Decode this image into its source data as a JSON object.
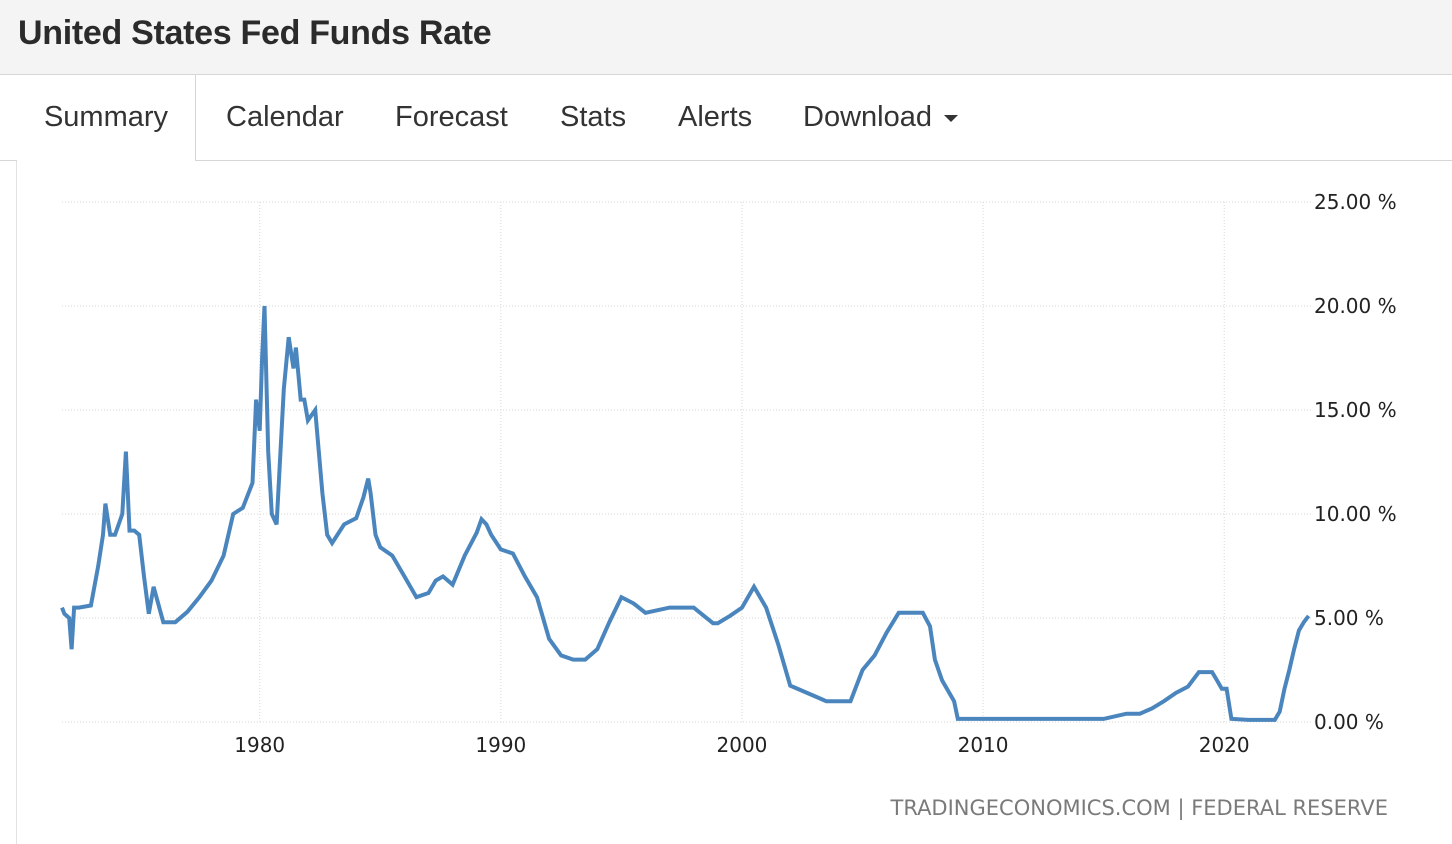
{
  "header": {
    "title": "United States Fed Funds Rate"
  },
  "tabs": [
    {
      "label": "Summary",
      "active": true
    },
    {
      "label": "Calendar"
    },
    {
      "label": "Forecast"
    },
    {
      "label": "Stats"
    },
    {
      "label": "Alerts"
    },
    {
      "label": "Download"
    }
  ],
  "colors": {
    "line": "#4a86bd",
    "grid": "#d9d9d9"
  },
  "chart_data": {
    "type": "line",
    "title": "United States Fed Funds Rate",
    "xlabel": "",
    "ylabel": "",
    "xlim": [
      1971.8,
      2023.6
    ],
    "ylim": [
      0,
      25
    ],
    "y_ticks": [
      0,
      5,
      10,
      15,
      20,
      25
    ],
    "y_tick_labels": [
      "0.00 %",
      "5.00 %",
      "10.00 %",
      "15.00 %",
      "20.00 %",
      "25.00 %"
    ],
    "x_ticks": [
      1980,
      1990,
      2000,
      2010,
      2020
    ],
    "x_tick_labels": [
      "1980",
      "1990",
      "2000",
      "2010",
      "2020"
    ],
    "grid": true,
    "source": "TRADINGECONOMICS.COM | FEDERAL RESERVE",
    "series": [
      {
        "name": "Fed Funds Rate",
        "x": [
          1971.8,
          1971.9,
          1972.1,
          1972.2,
          1972.3,
          1972.5,
          1973.0,
          1973.3,
          1973.5,
          1973.6,
          1973.8,
          1974.0,
          1974.3,
          1974.45,
          1974.6,
          1974.8,
          1975.0,
          1975.2,
          1975.4,
          1975.6,
          1976.0,
          1976.5,
          1977.0,
          1977.5,
          1978.0,
          1978.5,
          1978.9,
          1979.3,
          1979.7,
          1979.85,
          1980.0,
          1980.1,
          1980.2,
          1980.35,
          1980.5,
          1980.7,
          1981.0,
          1981.2,
          1981.4,
          1981.5,
          1981.7,
          1981.85,
          1982.0,
          1982.3,
          1982.6,
          1982.8,
          1983.0,
          1983.5,
          1984.0,
          1984.3,
          1984.5,
          1984.6,
          1984.8,
          1985.0,
          1985.5,
          1986.0,
          1986.5,
          1987.0,
          1987.3,
          1987.6,
          1988.0,
          1988.5,
          1989.0,
          1989.2,
          1989.4,
          1989.6,
          1990.0,
          1990.5,
          1991.0,
          1991.5,
          1992.0,
          1992.5,
          1993.0,
          1993.5,
          1994.0,
          1994.5,
          1995.0,
          1995.5,
          1996.0,
          1997.0,
          1998.0,
          1998.8,
          1999.0,
          1999.5,
          2000.0,
          2000.5,
          2001.0,
          2001.5,
          2002.0,
          2003.0,
          2003.5,
          2004.5,
          2005.0,
          2005.5,
          2006.0,
          2006.5,
          2007.0,
          2007.5,
          2007.8,
          2008.0,
          2008.3,
          2008.8,
          2008.95,
          2009.5,
          2012.0,
          2015.0,
          2015.95,
          2016.5,
          2017.0,
          2017.5,
          2018.0,
          2018.5,
          2018.95,
          2019.5,
          2019.7,
          2019.9,
          2020.1,
          2020.3,
          2021.0,
          2022.1,
          2022.3,
          2022.5,
          2022.7,
          2022.9,
          2023.1,
          2023.3,
          2023.5
        ],
        "y": [
          5.5,
          5.2,
          5.0,
          3.5,
          5.5,
          5.5,
          5.6,
          7.5,
          9.0,
          10.5,
          9.0,
          9.0,
          10.0,
          13.0,
          9.2,
          9.2,
          9.0,
          7.0,
          5.2,
          6.5,
          4.8,
          4.8,
          5.3,
          6.0,
          6.8,
          8.0,
          10.0,
          10.3,
          11.5,
          15.5,
          14.0,
          17.5,
          20.0,
          13.0,
          10.0,
          9.5,
          16.0,
          18.5,
          17.0,
          18.0,
          15.5,
          15.5,
          14.5,
          15.0,
          11.0,
          9.0,
          8.6,
          9.5,
          9.8,
          10.8,
          11.7,
          11.0,
          9.0,
          8.4,
          8.0,
          7.0,
          6.0,
          6.2,
          6.8,
          7.0,
          6.6,
          8.0,
          9.1,
          9.75,
          9.5,
          9.0,
          8.3,
          8.1,
          7.0,
          6.0,
          4.0,
          3.2,
          3.0,
          3.0,
          3.5,
          4.8,
          6.0,
          5.7,
          5.25,
          5.5,
          5.5,
          4.75,
          4.75,
          5.1,
          5.5,
          6.5,
          5.5,
          3.75,
          1.75,
          1.25,
          1.0,
          1.0,
          2.5,
          3.2,
          4.3,
          5.25,
          5.25,
          5.25,
          4.6,
          3.0,
          2.0,
          1.0,
          0.15,
          0.15,
          0.15,
          0.15,
          0.4,
          0.4,
          0.65,
          1.0,
          1.4,
          1.7,
          2.4,
          2.4,
          2.0,
          1.6,
          1.6,
          0.15,
          0.1,
          0.1,
          0.5,
          1.6,
          2.5,
          3.5,
          4.4,
          4.8,
          5.1
        ]
      }
    ]
  }
}
